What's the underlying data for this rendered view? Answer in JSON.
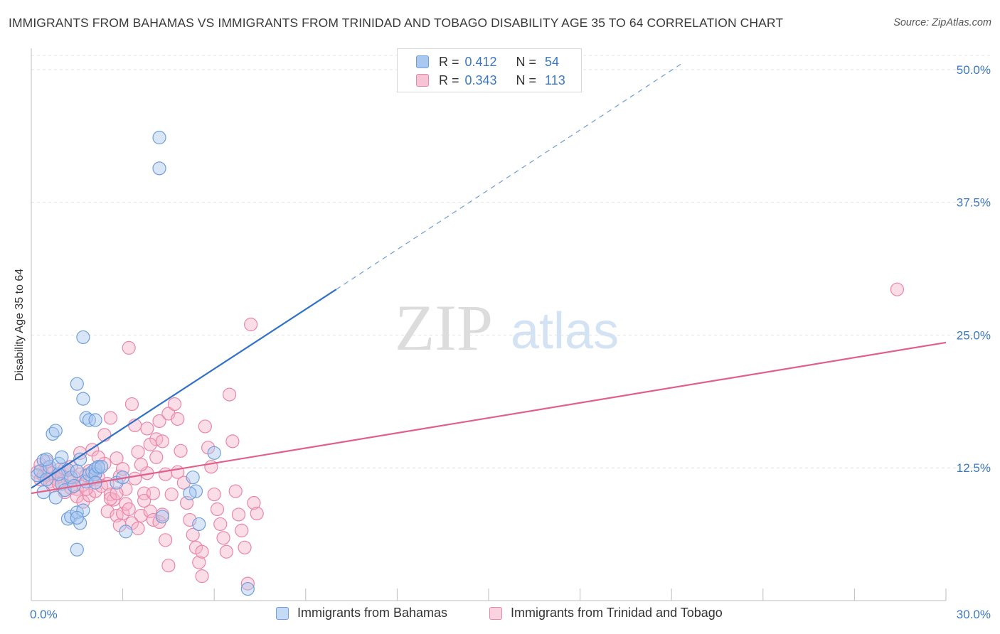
{
  "title": "IMMIGRANTS FROM BAHAMAS VS IMMIGRANTS FROM TRINIDAD AND TOBAGO DISABILITY AGE 35 TO 64 CORRELATION CHART",
  "source": "Source: ZipAtlas.com",
  "watermark": {
    "zip": "ZIP",
    "atlas": "atlas"
  },
  "legend": [
    {
      "r_label": "R =",
      "r_value": "0.412",
      "n_label": "N =",
      "n_value": "54"
    },
    {
      "r_label": "R =",
      "r_value": "0.343",
      "n_label": "N =",
      "n_value": "113"
    }
  ],
  "colors": {
    "blue_fill": "#a9c8f0",
    "blue_stroke": "#6f9fdc",
    "blue_line": "#2f72c8",
    "pink_fill": "#f6b4c9",
    "pink_stroke": "#ea86a6",
    "pink_line": "#e0608a",
    "value_text": "#3b78c4",
    "grid": "#e4e4e4"
  },
  "chart_data": {
    "type": "scatter",
    "ylabel": "Disability Age 35 to 64",
    "xlabel": "",
    "xlim": [
      0,
      30
    ],
    "ylim": [
      0,
      52
    ],
    "x_tick_labels": [
      {
        "value": 0,
        "label": "0.0%"
      },
      {
        "value": 30,
        "label": "30.0%"
      }
    ],
    "y_tick_labels": [
      {
        "value": 12.5,
        "label": "12.5%"
      },
      {
        "value": 25,
        "label": "25.0%"
      },
      {
        "value": 37.5,
        "label": "37.5%"
      },
      {
        "value": 50,
        "label": "50.0%"
      }
    ],
    "x_minor_ticks": [
      0,
      3,
      6,
      9,
      12,
      15,
      18,
      21,
      24,
      27,
      30
    ],
    "grid": true,
    "legend_position": "top-center",
    "series": [
      {
        "name": "Immigrants from Bahamas",
        "color_key": "blue",
        "trend": {
          "x0": 0,
          "y0": 10.6,
          "x1": 10,
          "y1": 29.3,
          "dashed_to_x": 21.3,
          "dashed_to_y": 50.5
        },
        "points": [
          [
            0.2,
            11.8
          ],
          [
            0.3,
            12.2
          ],
          [
            0.4,
            13.2
          ],
          [
            0.5,
            11.4
          ],
          [
            0.4,
            10.2
          ],
          [
            0.6,
            12.6
          ],
          [
            0.7,
            15.7
          ],
          [
            0.8,
            16.0
          ],
          [
            0.9,
            12.9
          ],
          [
            1.0,
            13.5
          ],
          [
            1.0,
            11.0
          ],
          [
            1.1,
            10.4
          ],
          [
            1.2,
            12.3
          ],
          [
            1.3,
            11.6
          ],
          [
            1.4,
            10.8
          ],
          [
            1.5,
            12.2
          ],
          [
            1.6,
            13.3
          ],
          [
            0.5,
            13.3
          ],
          [
            0.8,
            9.7
          ],
          [
            0.9,
            11.9
          ],
          [
            1.2,
            7.7
          ],
          [
            1.3,
            7.9
          ],
          [
            1.5,
            8.3
          ],
          [
            1.6,
            7.3
          ],
          [
            1.7,
            8.5
          ],
          [
            1.8,
            11.2
          ],
          [
            1.9,
            11.9
          ],
          [
            2.0,
            12.1
          ],
          [
            2.2,
            12.5
          ],
          [
            1.5,
            20.4
          ],
          [
            1.7,
            19.0
          ],
          [
            1.5,
            4.8
          ],
          [
            1.5,
            7.8
          ],
          [
            1.7,
            24.8
          ],
          [
            1.8,
            17.2
          ],
          [
            1.9,
            17.0
          ],
          [
            2.1,
            12.4
          ],
          [
            2.1,
            11.9
          ],
          [
            2.1,
            17.0
          ],
          [
            2.2,
            12.6
          ],
          [
            2.1,
            11.1
          ],
          [
            2.8,
            11.1
          ],
          [
            2.3,
            12.6
          ],
          [
            3.0,
            11.6
          ],
          [
            3.1,
            6.5
          ],
          [
            4.2,
            43.6
          ],
          [
            4.3,
            7.9
          ],
          [
            5.4,
            10.3
          ],
          [
            5.2,
            10.1
          ],
          [
            5.3,
            11.6
          ],
          [
            5.5,
            7.2
          ],
          [
            6.0,
            13.9
          ],
          [
            4.2,
            40.7
          ],
          [
            7.1,
            1.1
          ]
        ]
      },
      {
        "name": "Immigrants from Trinidad and Tobago",
        "color_key": "pink",
        "trend": {
          "x0": 0,
          "y0": 10.1,
          "x1": 30,
          "y1": 24.3
        },
        "points": [
          [
            0.2,
            12.1
          ],
          [
            0.3,
            11.4
          ],
          [
            0.4,
            11.8
          ],
          [
            0.5,
            12.5
          ],
          [
            0.6,
            11.2
          ],
          [
            0.7,
            12.0
          ],
          [
            0.8,
            11.5
          ],
          [
            0.9,
            12.3
          ],
          [
            1.0,
            11.7
          ],
          [
            1.1,
            12.4
          ],
          [
            1.2,
            11.3
          ],
          [
            1.3,
            12.6
          ],
          [
            1.4,
            11.6
          ],
          [
            1.5,
            10.5
          ],
          [
            1.6,
            11.9
          ],
          [
            1.7,
            10.9
          ],
          [
            1.8,
            11.8
          ],
          [
            1.9,
            12.2
          ],
          [
            2.0,
            11.5
          ],
          [
            2.1,
            12.1
          ],
          [
            0.3,
            12.8
          ],
          [
            0.5,
            13.1
          ],
          [
            0.7,
            10.8
          ],
          [
            0.9,
            11.0
          ],
          [
            1.1,
            10.2
          ],
          [
            1.3,
            10.6
          ],
          [
            1.5,
            9.8
          ],
          [
            1.7,
            9.3
          ],
          [
            1.9,
            9.9
          ],
          [
            2.1,
            10.3
          ],
          [
            2.2,
            11.6
          ],
          [
            2.3,
            10.8
          ],
          [
            2.4,
            12.9
          ],
          [
            2.5,
            11.0
          ],
          [
            2.6,
            10.0
          ],
          [
            2.7,
            9.5
          ],
          [
            2.8,
            13.4
          ],
          [
            2.9,
            11.7
          ],
          [
            3.0,
            12.4
          ],
          [
            3.1,
            10.5
          ],
          [
            2.5,
            8.4
          ],
          [
            2.6,
            9.6
          ],
          [
            2.8,
            8.0
          ],
          [
            2.9,
            7.1
          ],
          [
            3.0,
            8.2
          ],
          [
            3.1,
            9.1
          ],
          [
            3.2,
            8.6
          ],
          [
            3.3,
            7.3
          ],
          [
            3.4,
            11.5
          ],
          [
            3.5,
            6.8
          ],
          [
            3.6,
            8.0
          ],
          [
            3.7,
            10.1
          ],
          [
            3.8,
            12.0
          ],
          [
            3.9,
            8.4
          ],
          [
            4.0,
            7.6
          ],
          [
            4.1,
            15.2
          ],
          [
            4.2,
            16.9
          ],
          [
            4.3,
            15.0
          ],
          [
            4.4,
            11.9
          ],
          [
            4.5,
            17.6
          ],
          [
            3.3,
            18.5
          ],
          [
            3.4,
            16.5
          ],
          [
            3.5,
            14.0
          ],
          [
            3.6,
            12.8
          ],
          [
            3.7,
            9.4
          ],
          [
            3.8,
            16.2
          ],
          [
            3.9,
            14.7
          ],
          [
            4.0,
            10.1
          ],
          [
            4.1,
            13.5
          ],
          [
            4.2,
            7.4
          ],
          [
            4.3,
            8.1
          ],
          [
            4.4,
            5.7
          ],
          [
            4.5,
            3.3
          ],
          [
            4.6,
            10.0
          ],
          [
            4.7,
            18.5
          ],
          [
            4.8,
            17.1
          ],
          [
            4.9,
            14.1
          ],
          [
            5.0,
            11.1
          ],
          [
            5.1,
            9.2
          ],
          [
            5.2,
            7.6
          ],
          [
            5.3,
            6.2
          ],
          [
            5.4,
            5.0
          ],
          [
            5.5,
            3.6
          ],
          [
            5.6,
            2.3
          ],
          [
            5.7,
            16.4
          ],
          [
            5.8,
            14.4
          ],
          [
            5.9,
            12.6
          ],
          [
            6.0,
            10.0
          ],
          [
            6.1,
            8.6
          ],
          [
            6.2,
            7.2
          ],
          [
            6.3,
            5.9
          ],
          [
            6.4,
            4.6
          ],
          [
            6.5,
            19.4
          ],
          [
            6.6,
            15.0
          ],
          [
            6.7,
            10.3
          ],
          [
            6.8,
            8.1
          ],
          [
            6.9,
            6.6
          ],
          [
            7.0,
            5.0
          ],
          [
            7.1,
            1.6
          ],
          [
            7.2,
            26.0
          ],
          [
            7.3,
            9.2
          ],
          [
            7.4,
            8.2
          ],
          [
            3.2,
            23.8
          ],
          [
            2.0,
            14.2
          ],
          [
            2.2,
            13.5
          ],
          [
            2.4,
            15.6
          ],
          [
            2.6,
            17.2
          ],
          [
            1.6,
            13.9
          ],
          [
            1.8,
            10.5
          ],
          [
            2.8,
            10.1
          ],
          [
            4.8,
            12.1
          ],
          [
            5.6,
            4.6
          ],
          [
            28.4,
            29.3
          ]
        ]
      }
    ]
  }
}
